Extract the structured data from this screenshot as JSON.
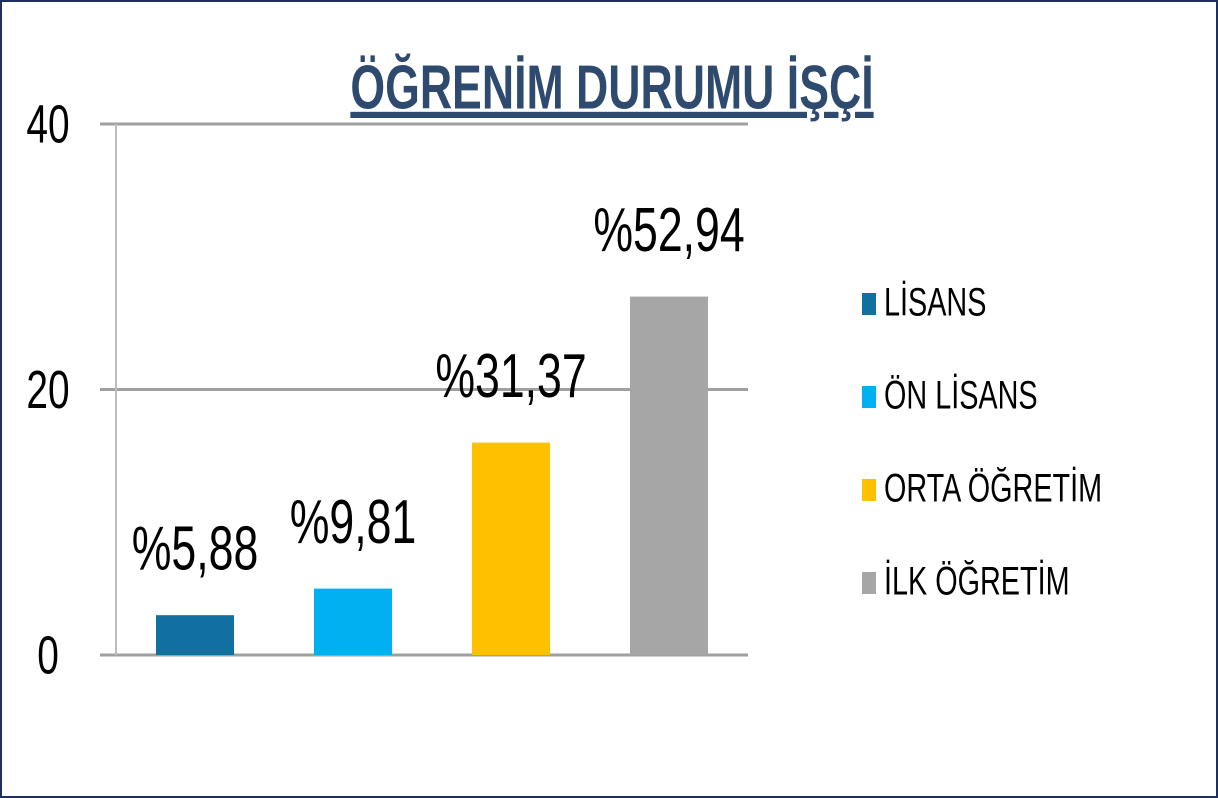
{
  "chart_data": {
    "type": "bar",
    "title": "ÖĞRENİM DURUMU İŞÇİ",
    "series": [
      {
        "name": "LİSANS",
        "color": "#1170a0",
        "values": [
          3
        ],
        "value_labels": [
          "%5,88"
        ]
      },
      {
        "name": "ÖN LİSANS",
        "color": "#00b0f0",
        "values": [
          5
        ],
        "value_labels": [
          "%9,81"
        ]
      },
      {
        "name": "ORTA ÖĞRETİM",
        "color": "#ffc000",
        "values": [
          16
        ],
        "value_labels": [
          "%31,37"
        ]
      },
      {
        "name": "İLK ÖĞRETİM",
        "color": "#a6a6a6",
        "values": [
          27
        ],
        "value_labels": [
          "%52,94"
        ]
      }
    ],
    "ylim": [
      0,
      40
    ],
    "yticks": [
      0,
      20,
      40
    ],
    "grid": true,
    "legend": "right"
  }
}
